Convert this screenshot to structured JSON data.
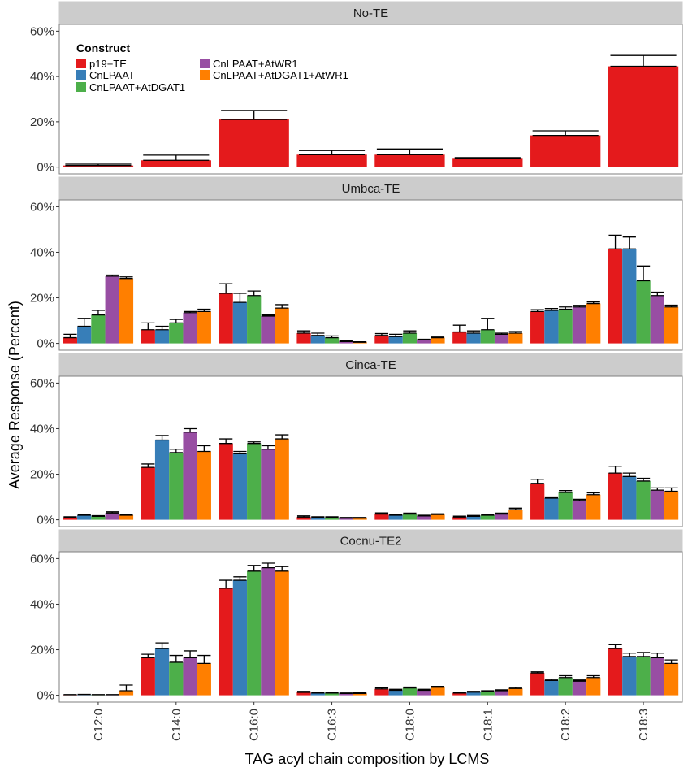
{
  "chart_data": {
    "type": "bar",
    "title": "",
    "xlabel": "TAG acyl chain composition by LCMS",
    "ylabel": "Average Response (Percent)",
    "ylim": [
      0,
      60
    ],
    "yticks": [
      "0%",
      "20%",
      "40%",
      "60%"
    ],
    "ytick_values": [
      0,
      20,
      40,
      60
    ],
    "categories": [
      "C12:0",
      "C14:0",
      "C16:0",
      "C16:3",
      "C18:0",
      "C18:1",
      "C18:2",
      "C18:3"
    ],
    "legend": {
      "title": "Construct",
      "position": "top-left",
      "entries": [
        {
          "name": "p19+TE",
          "color": "#e41a1c"
        },
        {
          "name": "CnLPAAT",
          "color": "#377eb8"
        },
        {
          "name": "CnLPAAT+AtDGAT1",
          "color": "#4daf4a"
        },
        {
          "name": "CnLPAAT+AtWR1",
          "color": "#984ea3"
        },
        {
          "name": "CnLPAAT+AtDGAT1+AtWR1",
          "color": "#ff7f00"
        }
      ]
    },
    "panels": [
      {
        "title": "No-TE",
        "series": [
          {
            "name": "p19+TE",
            "values": [
              0.7,
              3.0,
              21.0,
              5.5,
              5.5,
              3.7,
              14.0,
              44.5
            ],
            "errors": [
              0.6,
              2.3,
              4.0,
              1.8,
              2.5,
              0.5,
              2.0,
              4.8
            ]
          }
        ]
      },
      {
        "title": "Umbca-TE",
        "series": [
          {
            "name": "p19+TE",
            "values": [
              2.5,
              6.0,
              22.0,
              4.5,
              3.5,
              5.0,
              14.0,
              41.5
            ],
            "errors": [
              1.5,
              3.0,
              4.2,
              1.0,
              0.8,
              3.0,
              0.8,
              6.0
            ]
          },
          {
            "name": "CnLPAAT",
            "values": [
              7.5,
              6.0,
              18.0,
              3.5,
              3.0,
              4.5,
              14.5,
              41.5
            ],
            "errors": [
              3.5,
              1.5,
              4.0,
              1.0,
              1.0,
              1.0,
              0.8,
              5.2
            ]
          },
          {
            "name": "CnLPAAT+AtDGAT1",
            "values": [
              12.5,
              9.0,
              21.0,
              2.5,
              4.5,
              6.0,
              15.0,
              27.5
            ],
            "errors": [
              2.0,
              1.5,
              2.0,
              0.8,
              1.0,
              5.0,
              1.0,
              6.5
            ]
          },
          {
            "name": "CnLPAAT+AtWR1",
            "values": [
              29.5,
              13.5,
              12.0,
              0.8,
              1.5,
              4.0,
              16.0,
              21.0
            ],
            "errors": [
              0.5,
              0.5,
              0.5,
              0.3,
              0.3,
              0.5,
              0.7,
              1.5
            ]
          },
          {
            "name": "CnLPAAT+AtDGAT1+AtWR1",
            "values": [
              28.5,
              14.0,
              15.5,
              0.5,
              2.5,
              4.5,
              17.5,
              16.0
            ],
            "errors": [
              0.7,
              1.0,
              1.5,
              0.2,
              0.3,
              0.7,
              0.7,
              0.8
            ]
          }
        ]
      },
      {
        "title": "Cinca-TE",
        "series": [
          {
            "name": "p19+TE",
            "values": [
              1.0,
              23.0,
              33.5,
              1.2,
              2.5,
              1.2,
              16.0,
              20.5
            ],
            "errors": [
              0.3,
              1.5,
              2.0,
              0.5,
              0.5,
              0.4,
              1.8,
              3.0
            ]
          },
          {
            "name": "CnLPAAT",
            "values": [
              2.0,
              35.0,
              29.0,
              1.0,
              2.0,
              1.5,
              9.5,
              19.0
            ],
            "errors": [
              0.3,
              2.0,
              1.0,
              0.3,
              0.4,
              0.4,
              0.5,
              1.5
            ]
          },
          {
            "name": "CnLPAAT+AtDGAT1",
            "values": [
              1.5,
              29.5,
              33.5,
              1.0,
              2.5,
              2.0,
              12.0,
              17.0
            ],
            "errors": [
              0.3,
              1.5,
              0.7,
              0.3,
              0.4,
              0.4,
              0.8,
              1.2
            ]
          },
          {
            "name": "CnLPAAT+AtWR1",
            "values": [
              3.0,
              38.5,
              31.0,
              0.7,
              1.7,
              2.5,
              8.5,
              13.0
            ],
            "errors": [
              0.5,
              1.5,
              1.5,
              0.3,
              0.3,
              0.4,
              0.5,
              1.0
            ]
          },
          {
            "name": "CnLPAAT+AtDGAT1+AtWR1",
            "values": [
              2.0,
              30.0,
              35.5,
              0.7,
              2.3,
              4.5,
              11.0,
              12.5
            ],
            "errors": [
              0.4,
              2.5,
              1.8,
              0.3,
              0.3,
              0.6,
              0.8,
              1.5
            ]
          }
        ]
      },
      {
        "title": "Cocnu-TE2",
        "series": [
          {
            "name": "p19+TE",
            "values": [
              0.2,
              16.5,
              47.0,
              1.3,
              2.8,
              1.0,
              9.8,
              20.5
            ],
            "errors": [
              0.1,
              1.5,
              3.5,
              0.4,
              0.5,
              0.3,
              0.5,
              1.7
            ]
          },
          {
            "name": "CnLPAAT",
            "values": [
              0.3,
              20.5,
              50.5,
              1.0,
              2.2,
              1.4,
              6.5,
              17.0
            ],
            "errors": [
              0.1,
              2.5,
              1.5,
              0.3,
              0.4,
              0.3,
              0.5,
              1.5
            ]
          },
          {
            "name": "CnLPAAT+AtDGAT1",
            "values": [
              0.2,
              14.5,
              54.5,
              1.0,
              3.2,
              1.6,
              7.8,
              17.0
            ],
            "errors": [
              0.1,
              3.0,
              2.5,
              0.3,
              0.4,
              0.4,
              0.8,
              1.8
            ]
          },
          {
            "name": "CnLPAAT+AtWR1",
            "values": [
              0.2,
              16.5,
              56.0,
              0.8,
              2.2,
              2.0,
              6.2,
              16.5
            ],
            "errors": [
              0.1,
              3.0,
              2.0,
              0.2,
              0.4,
              0.4,
              0.5,
              2.0
            ]
          },
          {
            "name": "CnLPAAT+AtDGAT1+AtWR1",
            "values": [
              2.0,
              14.0,
              54.5,
              0.8,
              3.5,
              3.0,
              7.8,
              14.0
            ],
            "errors": [
              2.5,
              3.5,
              2.0,
              0.3,
              0.4,
              0.5,
              0.8,
              1.5
            ]
          }
        ]
      }
    ]
  }
}
